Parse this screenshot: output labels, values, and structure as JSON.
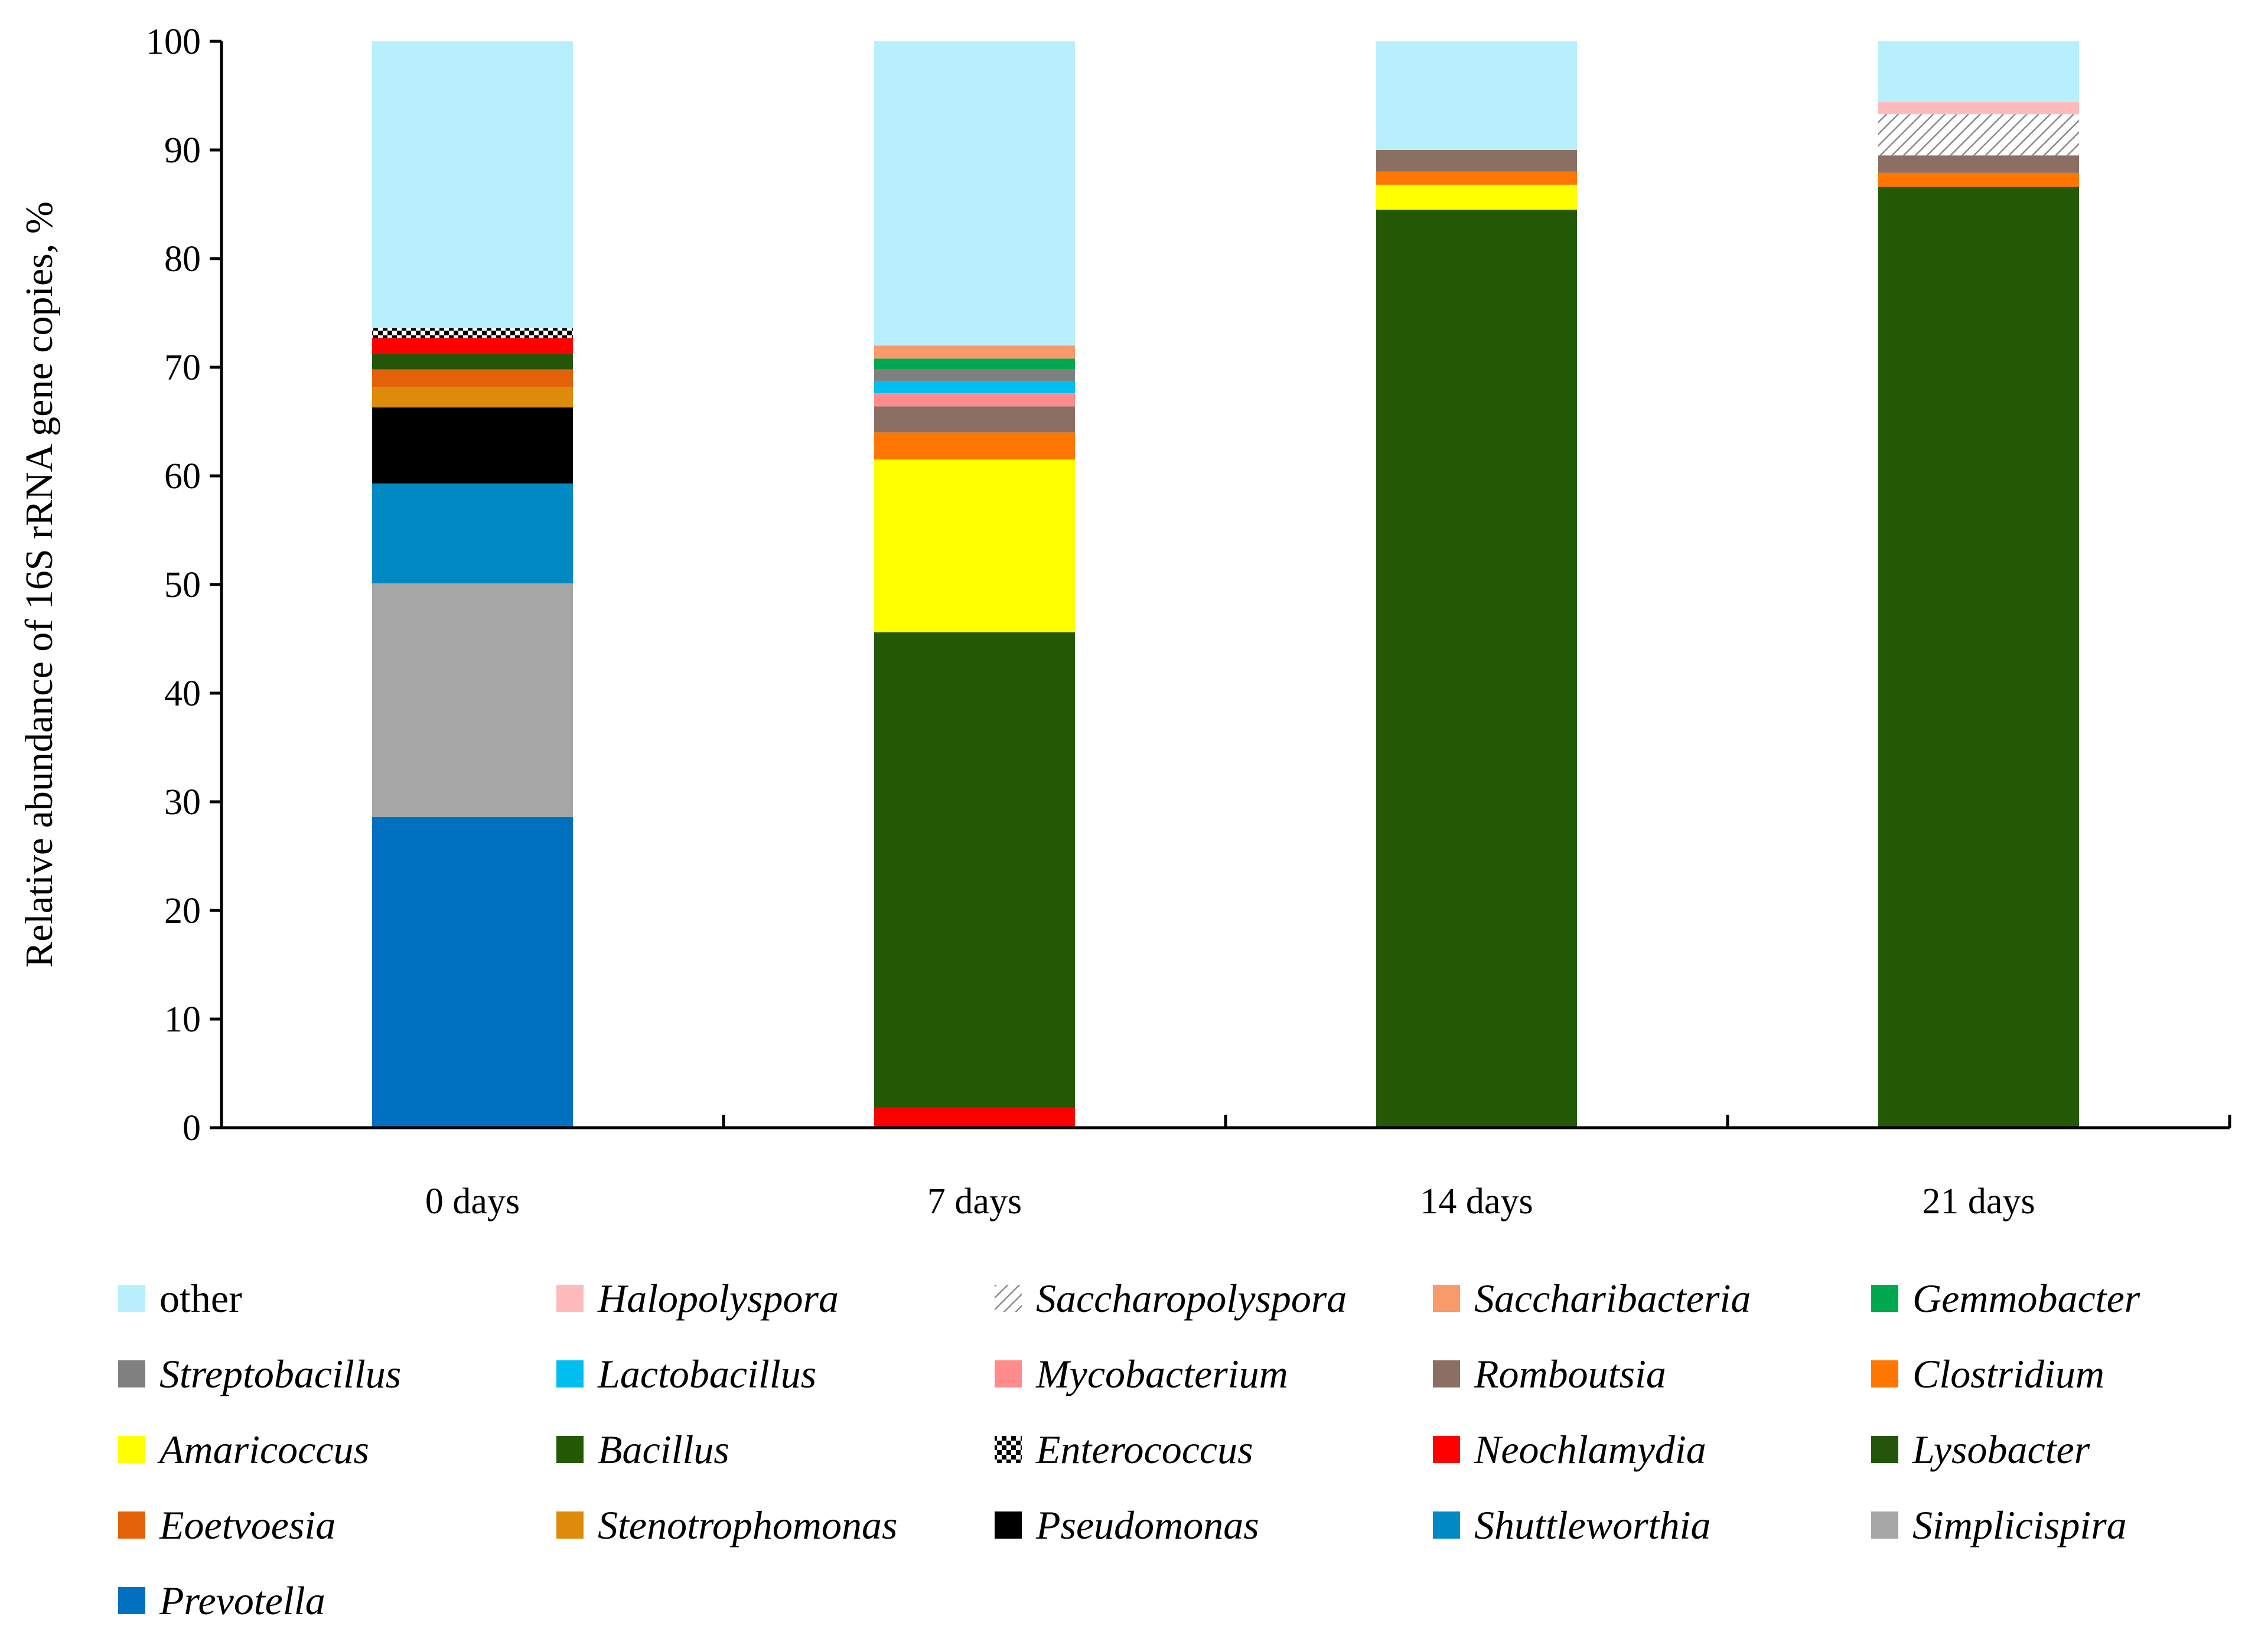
{
  "chart_data": {
    "type": "bar",
    "stacked": true,
    "title": "",
    "xlabel": "",
    "ylabel": "Relative abundance of 16S rRNA gene copies, %",
    "ylim": [
      0,
      100
    ],
    "yticks": [
      0,
      10,
      20,
      30,
      40,
      50,
      60,
      70,
      80,
      90,
      100
    ],
    "categories": [
      "0 days",
      "7 days",
      "14 days",
      "21 days"
    ],
    "legend_position": "bottom",
    "series": [
      {
        "name": "Prevotella",
        "italic": true,
        "color": "#0070C0",
        "values": [
          28.6,
          0,
          0,
          0
        ]
      },
      {
        "name": "Simplicispira",
        "italic": true,
        "color": "#A6A6A6",
        "values": [
          21.5,
          0,
          0,
          0
        ]
      },
      {
        "name": "Shuttleworthia",
        "italic": true,
        "color": "#0089C2",
        "values": [
          9.2,
          0,
          0,
          0
        ]
      },
      {
        "name": "Pseudomonas",
        "italic": true,
        "color": "#000000",
        "values": [
          7.0,
          0,
          0,
          0
        ]
      },
      {
        "name": "Stenotrophomonas",
        "italic": true,
        "color": "#DE8A0A",
        "values": [
          1.9,
          0,
          0,
          0
        ]
      },
      {
        "name": "Eoetvoesia",
        "italic": true,
        "color": "#E36209",
        "values": [
          1.6,
          0,
          0,
          0
        ]
      },
      {
        "name": "Lysobacter",
        "italic": true,
        "color": "#23560A",
        "values": [
          1.4,
          0,
          0,
          0
        ]
      },
      {
        "name": "Neochlamydia",
        "italic": true,
        "color": "#FF0000",
        "values": [
          1.5,
          1.8,
          0,
          0
        ]
      },
      {
        "name": "Enterococcus",
        "italic": true,
        "color": "#000000",
        "pattern": "checker",
        "values": [
          0.9,
          0,
          0,
          0
        ]
      },
      {
        "name": "Bacillus",
        "italic": true,
        "color": "#245A05",
        "values": [
          0,
          43.8,
          84.5,
          86.6
        ]
      },
      {
        "name": "Amaricoccus",
        "italic": true,
        "color": "#FFFF00",
        "values": [
          0,
          15.9,
          2.3,
          0
        ]
      },
      {
        "name": "Clostridium",
        "italic": true,
        "color": "#FF7700",
        "values": [
          0,
          2.5,
          1.2,
          1.3
        ]
      },
      {
        "name": "Romboutsia",
        "italic": true,
        "color": "#8B6F63",
        "values": [
          0,
          2.4,
          2.0,
          1.6
        ]
      },
      {
        "name": "Mycobacterium",
        "italic": true,
        "color": "#FF8C8C",
        "values": [
          0,
          1.2,
          0,
          0
        ]
      },
      {
        "name": "Lactobacillus",
        "italic": true,
        "color": "#00BEF0",
        "values": [
          0,
          1.1,
          0,
          0
        ]
      },
      {
        "name": "Streptobacillus",
        "italic": true,
        "color": "#808080",
        "values": [
          0,
          1.1,
          0,
          0
        ]
      },
      {
        "name": "Gemmobacter",
        "italic": true,
        "color": "#00A850",
        "values": [
          0,
          1.0,
          0,
          0
        ]
      },
      {
        "name": "Saccharibacteria",
        "italic": true,
        "color": "#F99A6B",
        "values": [
          0,
          1.2,
          0,
          0
        ]
      },
      {
        "name": "Saccharopolyspora",
        "italic": true,
        "color": "#9A9A9A",
        "pattern": "hatch",
        "values": [
          0,
          0,
          0,
          3.8
        ]
      },
      {
        "name": "Halopolyspora",
        "italic": true,
        "color": "#FFBBBB",
        "values": [
          0,
          0,
          0,
          1.1
        ]
      },
      {
        "name": "other",
        "italic": false,
        "color": "#B7F0FC",
        "values": [
          26.4,
          28.0,
          10.0,
          5.6
        ]
      }
    ],
    "legend_order": [
      "other",
      "Halopolyspora",
      "Saccharopolyspora",
      "Saccharibacteria",
      "Gemmobacter",
      "Streptobacillus",
      "Lactobacillus",
      "Mycobacterium",
      "Romboutsia",
      "Clostridium",
      "Amaricoccus",
      "Bacillus",
      "Enterococcus",
      "Neochlamydia",
      "Lysobacter",
      "Eoetvoesia",
      "Stenotrophomonas",
      "Pseudomonas",
      "Shuttleworthia",
      "Simplicispira",
      "Prevotella"
    ]
  }
}
